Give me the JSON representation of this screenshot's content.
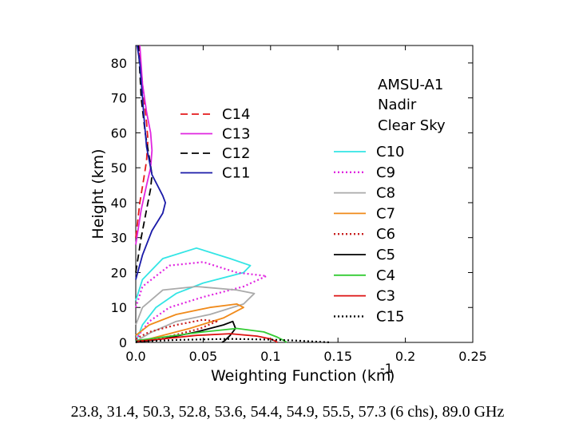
{
  "chart_data": {
    "type": "line",
    "xlabel": "Weighting Function (km",
    "xlabel_sup": "-1",
    "xlabel_close": ")",
    "ylabel": "Height (km)",
    "xlim": [
      0,
      0.25
    ],
    "ylim": [
      0,
      85
    ],
    "xticks": [
      0,
      0.05,
      0.1,
      0.15,
      0.2,
      0.25
    ],
    "xtick_labels": [
      "0.0",
      "0.05",
      "0.1",
      "0.15",
      "0.2",
      "0.25"
    ],
    "yticks": [
      0,
      10,
      20,
      30,
      40,
      50,
      60,
      70,
      80
    ],
    "ytick_labels": [
      "0",
      "10",
      "20",
      "30",
      "40",
      "50",
      "60",
      "70",
      "80"
    ],
    "annotation": [
      "AMSU-A1",
      "Nadir",
      "Clear Sky"
    ],
    "legend_left": [
      "C14",
      "C13",
      "C12",
      "C11"
    ],
    "legend_right": [
      "C10",
      "C9",
      "C8",
      "C7",
      "C6",
      "C5",
      "C4",
      "C3",
      "C15"
    ],
    "series": [
      {
        "name": "C14",
        "color": "#e41a1c",
        "dash": "dash",
        "points": [
          [
            0,
            30
          ],
          [
            0.003,
            40
          ],
          [
            0.006,
            47
          ],
          [
            0.008,
            52
          ],
          [
            0.009,
            58
          ],
          [
            0.008,
            63
          ],
          [
            0.006,
            70
          ],
          [
            0.004,
            78
          ],
          [
            0.002,
            85
          ]
        ]
      },
      {
        "name": "C13",
        "color": "#e026e0",
        "dash": "solid",
        "points": [
          [
            0,
            28
          ],
          [
            0.004,
            38
          ],
          [
            0.008,
            45
          ],
          [
            0.011,
            50
          ],
          [
            0.012,
            55
          ],
          [
            0.011,
            60
          ],
          [
            0.008,
            66
          ],
          [
            0.005,
            74
          ],
          [
            0.003,
            85
          ]
        ]
      },
      {
        "name": "C12",
        "color": "#000000",
        "dash": "dash",
        "points": [
          [
            0,
            20
          ],
          [
            0.004,
            30
          ],
          [
            0.008,
            38
          ],
          [
            0.011,
            44
          ],
          [
            0.012,
            48
          ],
          [
            0.01,
            53
          ],
          [
            0.007,
            60
          ],
          [
            0.004,
            70
          ],
          [
            0.002,
            85
          ]
        ]
      },
      {
        "name": "C11",
        "color": "#1a1aa8",
        "dash": "solid",
        "points": [
          [
            0,
            18
          ],
          [
            0.005,
            25
          ],
          [
            0.012,
            32
          ],
          [
            0.02,
            37
          ],
          [
            0.022,
            40
          ],
          [
            0.02,
            42
          ],
          [
            0.012,
            48
          ],
          [
            0.008,
            56
          ],
          [
            0.006,
            65
          ],
          [
            0.003,
            80
          ],
          [
            0.001,
            85
          ]
        ]
      },
      {
        "name": "C10",
        "color": "#33e5e5",
        "dash": "solid",
        "points": [
          [
            0,
            12
          ],
          [
            0.005,
            18
          ],
          [
            0.02,
            24
          ],
          [
            0.045,
            27
          ],
          [
            0.07,
            24
          ],
          [
            0.085,
            22
          ],
          [
            0.08,
            20
          ],
          [
            0.05,
            17
          ],
          [
            0.03,
            14
          ],
          [
            0.015,
            10
          ],
          [
            0.005,
            5
          ],
          [
            0,
            0
          ]
        ]
      },
      {
        "name": "C9",
        "color": "#e026e0",
        "dash": "dot",
        "points": [
          [
            0,
            10
          ],
          [
            0.005,
            16
          ],
          [
            0.025,
            22
          ],
          [
            0.05,
            23
          ],
          [
            0.075,
            20
          ],
          [
            0.097,
            19
          ],
          [
            0.08,
            16
          ],
          [
            0.05,
            13
          ],
          [
            0.025,
            10
          ],
          [
            0.01,
            6
          ],
          [
            0.002,
            2
          ],
          [
            0,
            0
          ]
        ]
      },
      {
        "name": "C8",
        "color": "#aaaaaa",
        "dash": "solid",
        "points": [
          [
            0,
            5
          ],
          [
            0.005,
            10
          ],
          [
            0.02,
            15
          ],
          [
            0.045,
            16
          ],
          [
            0.075,
            15
          ],
          [
            0.088,
            14
          ],
          [
            0.08,
            11
          ],
          [
            0.055,
            8
          ],
          [
            0.03,
            6
          ],
          [
            0.012,
            3
          ],
          [
            0.003,
            1
          ],
          [
            0,
            0
          ]
        ]
      },
      {
        "name": "C7",
        "color": "#f08a1a",
        "dash": "solid",
        "points": [
          [
            0,
            2
          ],
          [
            0.01,
            5
          ],
          [
            0.03,
            8
          ],
          [
            0.055,
            10
          ],
          [
            0.075,
            11
          ],
          [
            0.08,
            10
          ],
          [
            0.065,
            7
          ],
          [
            0.04,
            4
          ],
          [
            0.02,
            2
          ],
          [
            0.005,
            0.5
          ],
          [
            0,
            0
          ]
        ]
      },
      {
        "name": "C6",
        "color": "#c81e1e",
        "dash": "dot",
        "points": [
          [
            0,
            1
          ],
          [
            0.01,
            3
          ],
          [
            0.03,
            5
          ],
          [
            0.05,
            6.5
          ],
          [
            0.06,
            6
          ],
          [
            0.048,
            4
          ],
          [
            0.028,
            2
          ],
          [
            0.01,
            0.5
          ],
          [
            0,
            0
          ]
        ]
      },
      {
        "name": "C5",
        "color": "#000000",
        "dash": "solid",
        "points": [
          [
            0,
            0
          ],
          [
            0.02,
            1
          ],
          [
            0.045,
            3
          ],
          [
            0.065,
            5
          ],
          [
            0.072,
            6
          ],
          [
            0.074,
            4
          ],
          [
            0.07,
            2
          ],
          [
            0.066,
            0.5
          ],
          [
            0.064,
            0
          ]
        ]
      },
      {
        "name": "C4",
        "color": "#33cc33",
        "dash": "solid",
        "points": [
          [
            0,
            0.5
          ],
          [
            0.02,
            1.5
          ],
          [
            0.05,
            3
          ],
          [
            0.075,
            4
          ],
          [
            0.095,
            3
          ],
          [
            0.105,
            1.5
          ],
          [
            0.11,
            0.5
          ],
          [
            0.112,
            0
          ]
        ]
      },
      {
        "name": "C3",
        "color": "#dd1111",
        "dash": "solid",
        "points": [
          [
            0,
            0.3
          ],
          [
            0.02,
            1
          ],
          [
            0.045,
            2
          ],
          [
            0.07,
            2.5
          ],
          [
            0.09,
            1.8
          ],
          [
            0.1,
            1
          ],
          [
            0.104,
            0.3
          ],
          [
            0.105,
            0
          ]
        ]
      },
      {
        "name": "C15",
        "color": "#000000",
        "dash": "dot",
        "points": [
          [
            0,
            0.2
          ],
          [
            0.03,
            0.7
          ],
          [
            0.07,
            1
          ],
          [
            0.1,
            0.8
          ],
          [
            0.12,
            0.5
          ],
          [
            0.14,
            0.1
          ],
          [
            0.145,
            0
          ]
        ]
      }
    ]
  },
  "caption": "23.8, 31.4, 50.3, 52.8, 53.6, 54.4, 54.9, 55.5, 57.3 (6 chs), 89.0 GHz"
}
